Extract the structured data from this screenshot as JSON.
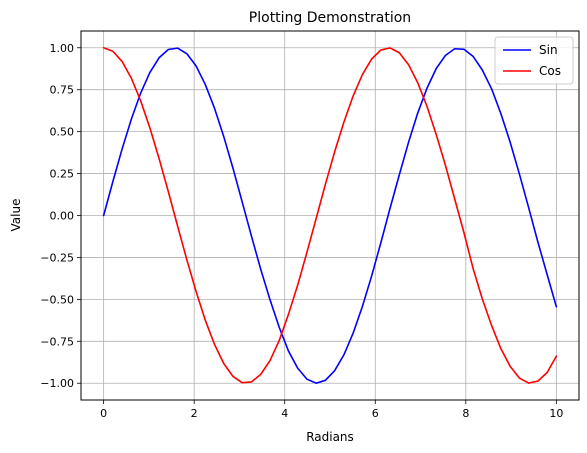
{
  "chart_data": {
    "type": "line",
    "title": "Plotting Demonstration",
    "xlabel": "Radians",
    "ylabel": "Value",
    "xlim": [
      -0.5,
      10.5
    ],
    "ylim": [
      -1.1,
      1.1
    ],
    "xticks": [
      0,
      2,
      4,
      6,
      8,
      10
    ],
    "xtick_labels": [
      "0",
      "2",
      "4",
      "6",
      "8",
      "10"
    ],
    "yticks": [
      -1.0,
      -0.75,
      -0.5,
      -0.25,
      0.0,
      0.25,
      0.5,
      0.75,
      1.0
    ],
    "ytick_labels": [
      "−1.00",
      "−0.75",
      "−0.50",
      "−0.25",
      "0.00",
      "0.25",
      "0.50",
      "0.75",
      "1.00"
    ],
    "grid": true,
    "legend_position": "top-right",
    "x": [
      0,
      0.2041,
      0.4082,
      0.6122,
      0.8163,
      1.0204,
      1.2245,
      1.4286,
      1.6327,
      1.8367,
      2.0408,
      2.2449,
      2.449,
      2.6531,
      2.8571,
      3.0612,
      3.2653,
      3.4694,
      3.6735,
      3.8776,
      4.0816,
      4.2857,
      4.4898,
      4.6939,
      4.898,
      5.102,
      5.3061,
      5.5102,
      5.7143,
      5.9184,
      6.1224,
      6.3265,
      6.5306,
      6.7347,
      6.9388,
      7.1429,
      7.3469,
      7.551,
      7.7551,
      7.9592,
      8.1633,
      8.3673,
      8.5714,
      8.7755,
      8.9796,
      9.1837,
      9.3878,
      9.5918,
      9.7959,
      10.0
    ],
    "series": [
      {
        "name": "Sin",
        "color": "#0000ff",
        "values": [
          0.0,
          0.2027,
          0.3969,
          0.5747,
          0.7287,
          0.8523,
          0.9404,
          0.9898,
          0.998,
          0.9649,
          0.8919,
          0.7814,
          0.6398,
          0.4706,
          0.2815,
          0.0803,
          -0.1232,
          -0.3205,
          -0.5011,
          -0.6663,
          -0.8075,
          -0.9102,
          -0.9755,
          -0.9998,
          -0.9826,
          -0.9254,
          -0.8311,
          -0.7018,
          -0.5431,
          -0.3617,
          -0.1633,
          0.0433,
          0.2423,
          0.4363,
          0.6116,
          0.7595,
          0.8763,
          0.9548,
          0.9941,
          0.9911,
          0.9479,
          0.8661,
          0.7539,
          0.6068,
          0.4369,
          0.2472,
          0.0466,
          -0.1579,
          -0.3518,
          -0.544
        ]
      },
      {
        "name": "Cos",
        "color": "#ff0000",
        "values": [
          1.0,
          0.9792,
          0.9179,
          0.8184,
          0.6849,
          0.5231,
          0.3401,
          0.1423,
          -0.0619,
          -0.2627,
          -0.4522,
          -0.624,
          -0.7685,
          -0.8823,
          -0.9595,
          -0.9968,
          -0.9924,
          -0.9472,
          -0.8654,
          -0.7457,
          -0.5899,
          -0.4153,
          -0.2202,
          -0.0179,
          0.1857,
          0.3791,
          0.5561,
          0.7124,
          0.8396,
          0.9323,
          0.9866,
          0.9991,
          0.9702,
          0.8998,
          0.791,
          0.6506,
          0.4818,
          0.2981,
          0.0976,
          -0.1029,
          -0.3186,
          -0.4998,
          -0.6571,
          -0.7948,
          -0.8995,
          -0.969,
          -0.9989,
          -0.9875,
          -0.9361,
          -0.8391
        ]
      }
    ]
  }
}
